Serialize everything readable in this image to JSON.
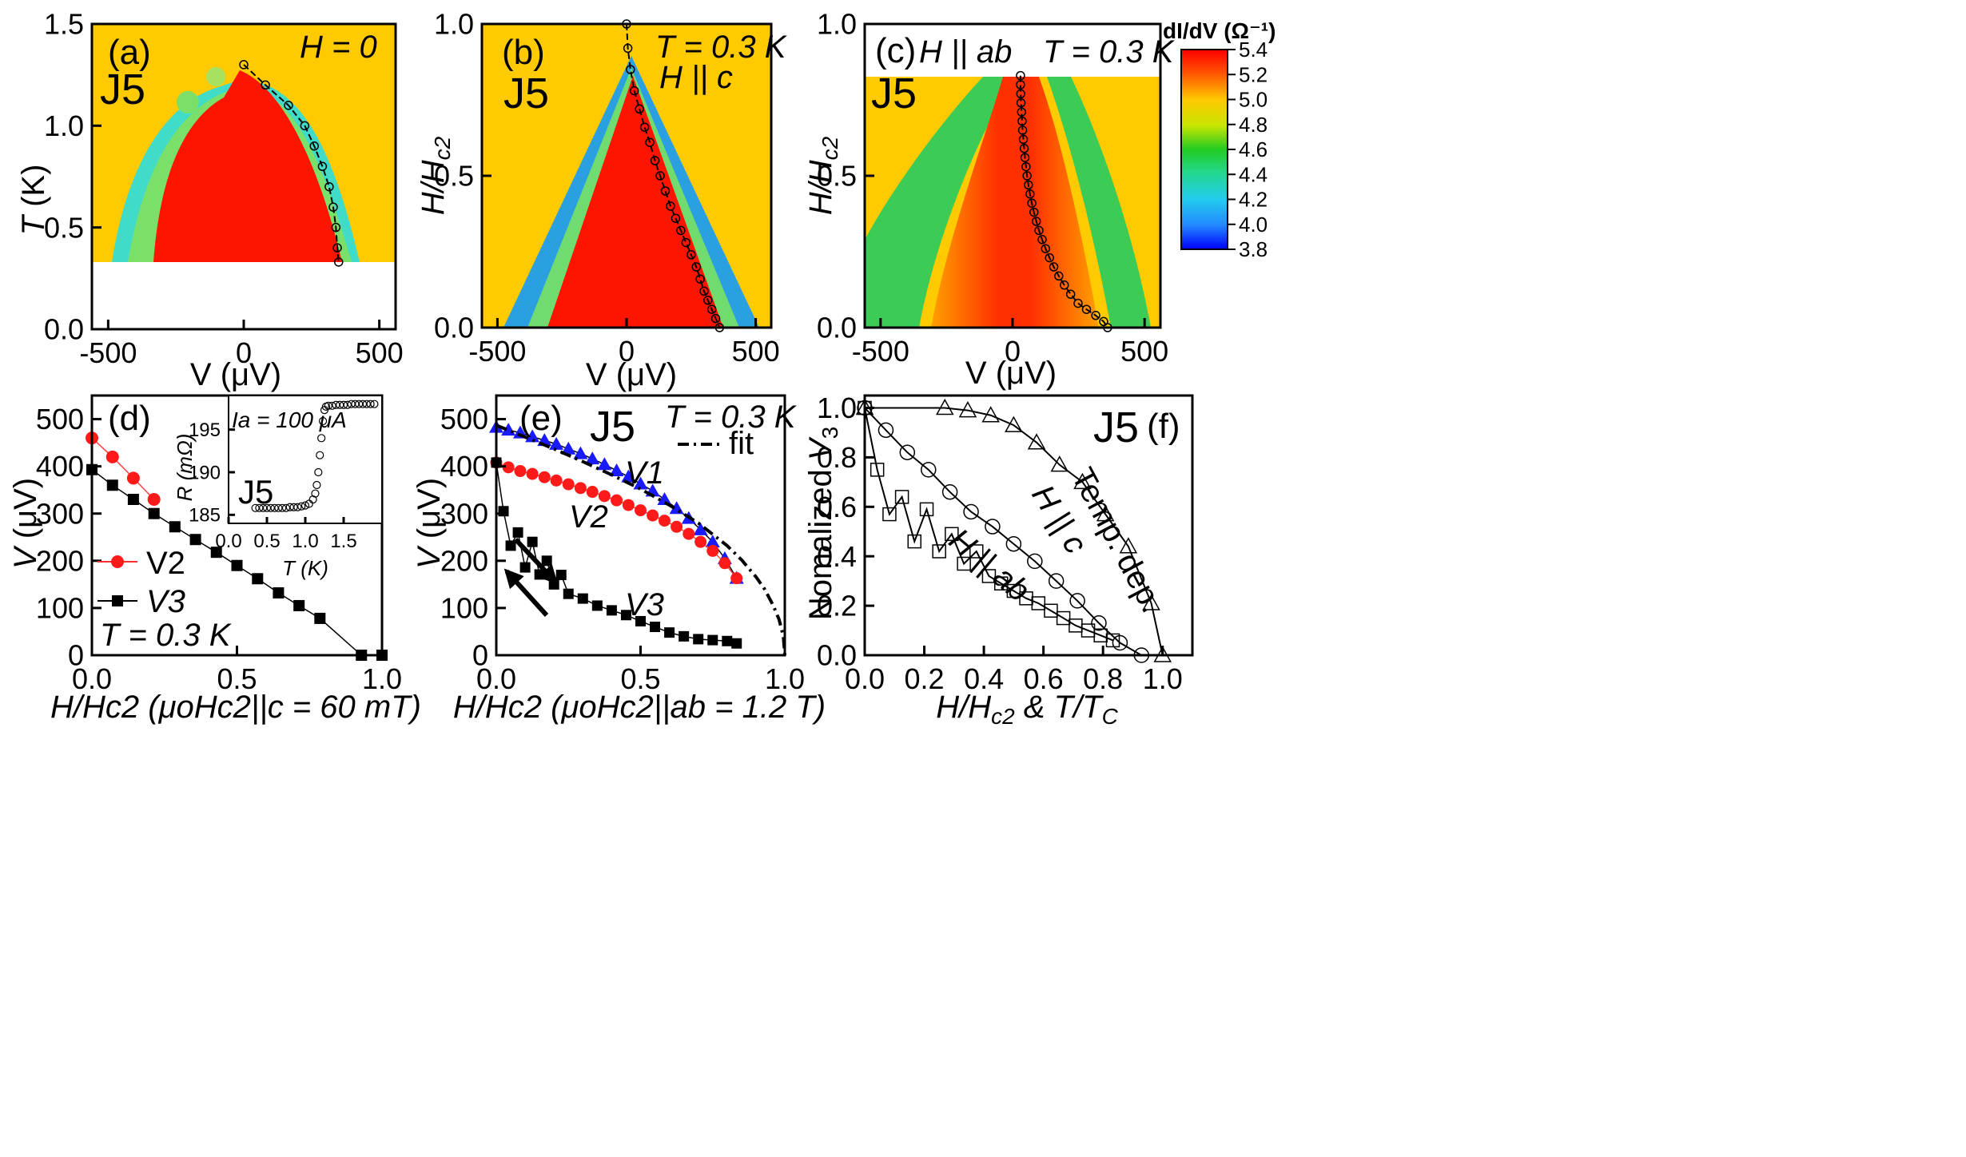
{
  "figure": {
    "sample": "J5",
    "colorbar": {
      "title": "dI/dV (Ω⁻¹)",
      "ticks": [
        "5.4",
        "5.2",
        "5.0",
        "4.8",
        "4.6",
        "4.4",
        "4.2",
        "4.0",
        "3.8"
      ],
      "range": [
        3.8,
        5.4
      ]
    }
  },
  "panels": {
    "a": {
      "tag": "(a)",
      "condition": "H = 0",
      "ylabel_main": "T",
      "ylabel_unit": " (K)",
      "xlabel": "V (μV)"
    },
    "b": {
      "tag": "(b)",
      "condition": "T = 0.3 K",
      "field": "H || c",
      "xlabel": "V (μV)"
    },
    "c": {
      "tag": "(c)",
      "field": "H || ab",
      "condition": "T = 0.3 K",
      "xlabel": "V (μV)"
    },
    "d": {
      "tag": "(d)",
      "temperature": "T = 0.3 K",
      "xlabel": "H/Hc2 (μoHc2||c = 60 mT)",
      "inset": {
        "label": "Ia = 100 μA",
        "xlabel": "T (K)",
        "ylabel": "R (mΩ)"
      }
    },
    "e": {
      "tag": "(e)",
      "temperature": "T = 0.3 K",
      "fit_label": "fit",
      "xlabel": "H/Hc2 (μoHc2||ab = 1.2 T)"
    },
    "f": {
      "tag": "(f)",
      "ylabel": "Nomalized V3",
      "xlabel": "H/Hc2 & T/Tc",
      "curve_labels": {
        "temp": "Temp. dep.",
        "hc": "H || c",
        "hab": "H || ab"
      }
    }
  },
  "chart_data": [
    {
      "id": "a",
      "type": "heatmap",
      "xlabel": "V (μV)",
      "ylabel": "T (K)",
      "xlim": [
        -560,
        560
      ],
      "ylim": [
        0,
        1.5
      ],
      "xticks": [
        "-500",
        "0",
        "500"
      ],
      "yticks": [
        "0.0",
        "0.5",
        "1.0",
        "1.5"
      ],
      "peak_trace": {
        "x": [
          0,
          80,
          165,
          225,
          260,
          290,
          315,
          330,
          340,
          345,
          350
        ],
        "y": [
          1.3,
          1.2,
          1.1,
          1.0,
          0.9,
          0.8,
          0.7,
          0.6,
          0.5,
          0.4,
          0.33
        ]
      }
    },
    {
      "id": "b",
      "type": "heatmap",
      "xlabel": "V (μV)",
      "ylabel": "H/Hc2",
      "xlim": [
        -560,
        560
      ],
      "ylim": [
        0,
        1.0
      ],
      "xticks": [
        "-500",
        "0",
        "500"
      ],
      "yticks": [
        "0.0",
        "0.5",
        "1.0"
      ],
      "peak_trace": {
        "x": [
          0,
          5,
          15,
          30,
          50,
          70,
          90,
          110,
          130,
          150,
          170,
          190,
          210,
          230,
          250,
          270,
          285,
          300,
          315,
          330,
          345,
          360
        ],
        "y": [
          1.0,
          0.92,
          0.85,
          0.78,
          0.72,
          0.66,
          0.61,
          0.55,
          0.5,
          0.45,
          0.4,
          0.36,
          0.32,
          0.28,
          0.24,
          0.2,
          0.16,
          0.12,
          0.09,
          0.06,
          0.03,
          0.0
        ]
      }
    },
    {
      "id": "c",
      "type": "heatmap",
      "xlabel": "V (μV)",
      "ylabel": "H/Hc2",
      "xlim": [
        -560,
        560
      ],
      "ylim": [
        0,
        1.0
      ],
      "xticks": [
        "-500",
        "0",
        "500"
      ],
      "yticks": [
        "0.0",
        "0.5",
        "1.0"
      ],
      "peak_trace": {
        "x": [
          30,
          30,
          31,
          32,
          34,
          36,
          38,
          41,
          44,
          47,
          51,
          55,
          60,
          66,
          73,
          81,
          90,
          100,
          112,
          125,
          140,
          156,
          175,
          196,
          220,
          248,
          280,
          315,
          345,
          360
        ],
        "y": [
          0.83,
          0.8,
          0.77,
          0.74,
          0.71,
          0.68,
          0.65,
          0.62,
          0.59,
          0.56,
          0.53,
          0.5,
          0.47,
          0.44,
          0.41,
          0.38,
          0.35,
          0.32,
          0.29,
          0.26,
          0.23,
          0.2,
          0.17,
          0.14,
          0.11,
          0.08,
          0.06,
          0.04,
          0.02,
          0.0
        ]
      }
    },
    {
      "id": "d",
      "type": "line",
      "xlabel": "H/Hc2",
      "ylabel": "V (μV)",
      "xlim": [
        0,
        1.0
      ],
      "ylim": [
        0,
        550
      ],
      "xticks": [
        "0.0",
        "0.5",
        "1.0"
      ],
      "yticks": [
        "0",
        "100",
        "200",
        "300",
        "400",
        "500"
      ],
      "series": [
        {
          "name": "V2",
          "x": [
            0,
            0.071,
            0.143,
            0.214
          ],
          "y": [
            460,
            420,
            375,
            330
          ]
        },
        {
          "name": "V3",
          "x": [
            0,
            0.071,
            0.143,
            0.214,
            0.286,
            0.357,
            0.429,
            0.5,
            0.571,
            0.643,
            0.714,
            0.786,
            0.929,
            1.0
          ],
          "y": [
            393,
            360,
            330,
            300,
            272,
            245,
            218,
            190,
            162,
            132,
            105,
            78,
            0,
            0
          ]
        }
      ]
    },
    {
      "id": "d_inset",
      "type": "scatter",
      "xlabel": "T (K)",
      "ylabel": "R (mΩ)",
      "xlim": [
        0,
        2.0
      ],
      "ylim": [
        184,
        199
      ],
      "xticks": [
        "0.0",
        "0.5",
        "1.0",
        "1.5"
      ],
      "yticks": [
        "185",
        "190",
        "195"
      ],
      "series": [
        {
          "name": "R(T)",
          "x": [
            0.35,
            0.4,
            0.45,
            0.5,
            0.55,
            0.6,
            0.65,
            0.7,
            0.75,
            0.8,
            0.85,
            0.9,
            0.95,
            1.0,
            1.05,
            1.1,
            1.13,
            1.15,
            1.17,
            1.19,
            1.21,
            1.23,
            1.25,
            1.27,
            1.3,
            1.35,
            1.4,
            1.45,
            1.5,
            1.55,
            1.6,
            1.65,
            1.7,
            1.75,
            1.8,
            1.85,
            1.9
          ],
          "y": [
            185.8,
            185.8,
            185.8,
            185.8,
            185.8,
            185.8,
            185.8,
            185.8,
            185.8,
            185.9,
            185.9,
            185.9,
            186.0,
            186.1,
            186.3,
            186.8,
            187.5,
            188.5,
            190.0,
            192.0,
            194.0,
            196.0,
            197.3,
            197.7,
            197.8,
            197.8,
            197.9,
            197.9,
            197.9,
            197.9,
            198.0,
            198.0,
            198.0,
            198.0,
            198.0,
            198.0,
            198.0
          ]
        }
      ]
    },
    {
      "id": "e",
      "type": "line",
      "xlabel": "H/Hc2",
      "ylabel": "V (μV)",
      "xlim": [
        0,
        1.0
      ],
      "ylim": [
        0,
        550
      ],
      "xticks": [
        "0.0",
        "0.5",
        "1.0"
      ],
      "yticks": [
        "0",
        "100",
        "200",
        "300",
        "400",
        "500"
      ],
      "series": [
        {
          "name": "V1",
          "x": [
            0,
            0.042,
            0.083,
            0.125,
            0.167,
            0.208,
            0.25,
            0.292,
            0.333,
            0.375,
            0.417,
            0.458,
            0.5,
            0.542,
            0.583,
            0.625,
            0.667,
            0.708,
            0.75,
            0.792,
            0.833
          ],
          "y": [
            483,
            477,
            471,
            463,
            455,
            447,
            437,
            427,
            416,
            404,
            391,
            378,
            363,
            348,
            330,
            311,
            290,
            266,
            240,
            205,
            163
          ]
        },
        {
          "name": "V2",
          "x": [
            0,
            0.042,
            0.083,
            0.125,
            0.167,
            0.208,
            0.25,
            0.292,
            0.333,
            0.375,
            0.417,
            0.458,
            0.5,
            0.542,
            0.583,
            0.625,
            0.667,
            0.708,
            0.75,
            0.792,
            0.833
          ],
          "y": [
            408,
            398,
            390,
            384,
            377,
            370,
            362,
            354,
            346,
            337,
            328,
            318,
            307,
            296,
            285,
            272,
            257,
            240,
            221,
            195,
            163
          ]
        },
        {
          "name": "V3",
          "x": [
            0,
            0.025,
            0.05,
            0.075,
            0.1,
            0.125,
            0.15,
            0.175,
            0.2,
            0.225,
            0.25,
            0.3,
            0.35,
            0.4,
            0.45,
            0.5,
            0.55,
            0.6,
            0.65,
            0.7,
            0.75,
            0.8,
            0.833
          ],
          "y": [
            408,
            305,
            232,
            260,
            186,
            240,
            171,
            200,
            150,
            170,
            130,
            120,
            105,
            95,
            85,
            72,
            60,
            48,
            40,
            34,
            32,
            30,
            25
          ]
        },
        {
          "name": "fit",
          "x": [
            0,
            0.1,
            0.2,
            0.3,
            0.4,
            0.5,
            0.6,
            0.7,
            0.8,
            0.85,
            0.9,
            0.93,
            0.96,
            0.98,
            0.995,
            1.0
          ],
          "y": [
            487,
            462,
            437,
            410,
            382,
            352,
            318,
            280,
            232,
            202,
            166,
            140,
            105,
            76,
            40,
            0
          ]
        }
      ]
    },
    {
      "id": "f",
      "type": "line",
      "xlabel": "H/Hc2 & T/Tc",
      "ylabel": "Nomalized V3",
      "xlim": [
        0,
        1.1
      ],
      "ylim": [
        0,
        1.05
      ],
      "xticks": [
        "0.0",
        "0.2",
        "0.4",
        "0.6",
        "0.8",
        "1.0"
      ],
      "yticks": [
        "0.0",
        "0.2",
        "0.4",
        "0.6",
        "0.8",
        "1.0"
      ],
      "series": [
        {
          "name": "Temp. dep.",
          "marker": "triangle",
          "x": [
            0,
            0.269,
            0.346,
            0.423,
            0.5,
            0.577,
            0.654,
            0.731,
            0.808,
            0.885,
            0.962,
            1.0
          ],
          "y": [
            1.0,
            1.0,
            0.99,
            0.97,
            0.93,
            0.86,
            0.77,
            0.7,
            0.57,
            0.44,
            0.21,
            0.0
          ]
        },
        {
          "name": "H || c",
          "marker": "circle",
          "x": [
            0,
            0.071,
            0.143,
            0.214,
            0.286,
            0.357,
            0.429,
            0.5,
            0.571,
            0.643,
            0.714,
            0.786,
            0.857,
            0.929
          ],
          "y": [
            1.0,
            0.91,
            0.82,
            0.75,
            0.66,
            0.58,
            0.52,
            0.45,
            0.38,
            0.3,
            0.22,
            0.13,
            0.05,
            0.0
          ]
        },
        {
          "name": "H || ab",
          "marker": "square",
          "x": [
            0,
            0.042,
            0.083,
            0.125,
            0.167,
            0.208,
            0.25,
            0.292,
            0.333,
            0.375,
            0.417,
            0.458,
            0.5,
            0.542,
            0.583,
            0.625,
            0.667,
            0.708,
            0.75,
            0.792,
            0.833
          ],
          "y": [
            1.0,
            0.75,
            0.57,
            0.64,
            0.46,
            0.59,
            0.42,
            0.49,
            0.37,
            0.42,
            0.32,
            0.29,
            0.26,
            0.23,
            0.21,
            0.18,
            0.15,
            0.12,
            0.1,
            0.08,
            0.06
          ]
        }
      ]
    }
  ]
}
